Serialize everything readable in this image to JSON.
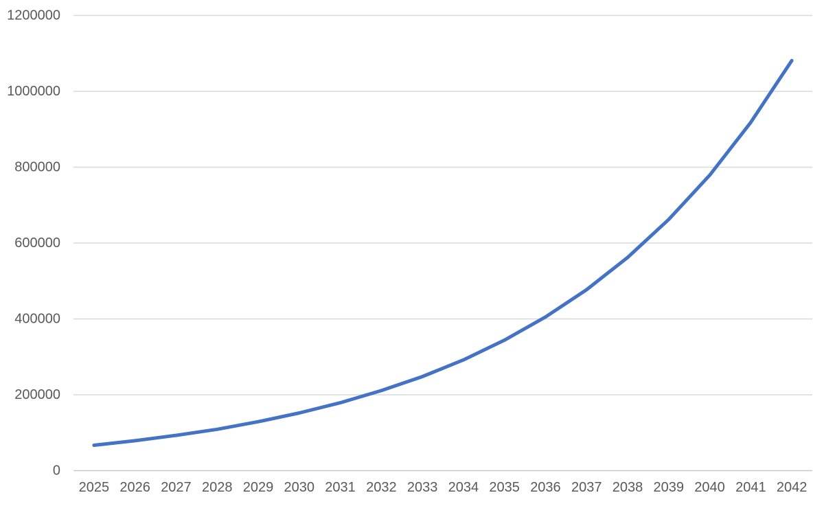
{
  "chart_data": {
    "type": "line",
    "title": "",
    "xlabel": "",
    "ylabel": "",
    "categories": [
      "2025",
      "2026",
      "2027",
      "2028",
      "2029",
      "2030",
      "2031",
      "2032",
      "2033",
      "2034",
      "2035",
      "2036",
      "2037",
      "2038",
      "2039",
      "2040",
      "2041",
      "2042"
    ],
    "series": [
      {
        "values": [
          67000,
          79000,
          93000,
          109000,
          129000,
          152000,
          179000,
          211000,
          248000,
          292000,
          344000,
          405000,
          477000,
          562000,
          662000,
          779000,
          918000,
          1081000
        ],
        "color": "#4472C4"
      }
    ],
    "ylim": [
      0,
      1200000
    ],
    "ytick_interval": 200000,
    "ytick_labels": [
      "0",
      "200000",
      "400000",
      "600000",
      "800000",
      "1000000",
      "1200000"
    ],
    "grid": "horizontal",
    "legend": "none"
  },
  "colors": {
    "series_line": "#4472C4",
    "gridline": "#D9D9D9",
    "axis_line": "#C8C8C8",
    "tick_label": "#595959",
    "background": "#FFFFFF"
  }
}
